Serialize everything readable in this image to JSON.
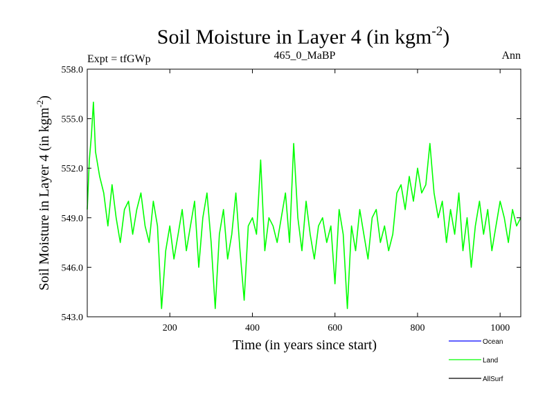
{
  "chart_data": {
    "type": "line",
    "title": "Soil Moisture in Layer 4 (in kgm",
    "title_sup": "-2",
    "title_close": ")",
    "subtitle_left": "Expt = tfGWp",
    "subtitle_center": "465_0_MaBP",
    "subtitle_right": "Ann",
    "xlabel": "Time (in years since start)",
    "ylabel": "Soil Moisture in Layer 4 (in kgm",
    "ylabel_sup": "-2",
    "ylabel_close": ")",
    "xlim": [
      0,
      1050
    ],
    "ylim": [
      543.0,
      558.0
    ],
    "x_ticks": [
      200,
      400,
      600,
      800,
      1000
    ],
    "x_tick_labels": [
      "200",
      "400",
      "600",
      "800",
      "1000"
    ],
    "y_ticks": [
      543.0,
      546.0,
      549.0,
      552.0,
      555.0,
      558.0
    ],
    "y_tick_labels": [
      "543.0",
      "546.0",
      "549.0",
      "552.0",
      "555.0",
      "558.0"
    ],
    "series": [
      {
        "name": "Land",
        "color": "#00ff00",
        "x": [
          0,
          5,
          10,
          15,
          20,
          30,
          40,
          50,
          60,
          70,
          80,
          90,
          100,
          110,
          120,
          130,
          140,
          150,
          160,
          170,
          180,
          190,
          200,
          210,
          220,
          230,
          240,
          250,
          260,
          270,
          280,
          290,
          300,
          310,
          320,
          330,
          340,
          350,
          360,
          370,
          380,
          390,
          400,
          410,
          420,
          430,
          440,
          450,
          460,
          470,
          480,
          490,
          500,
          510,
          520,
          530,
          540,
          550,
          560,
          570,
          580,
          590,
          600,
          610,
          620,
          630,
          640,
          650,
          660,
          670,
          680,
          690,
          700,
          710,
          720,
          730,
          740,
          750,
          760,
          770,
          780,
          790,
          800,
          810,
          820,
          830,
          840,
          850,
          860,
          870,
          880,
          890,
          900,
          910,
          920,
          930,
          940,
          950,
          960,
          970,
          980,
          990,
          1000,
          1010,
          1020,
          1030,
          1040,
          1050
        ],
        "values": [
          549.5,
          552.5,
          554.0,
          556.0,
          553.0,
          551.5,
          550.5,
          548.5,
          551.0,
          549.0,
          547.5,
          549.5,
          550.0,
          548.0,
          549.5,
          550.5,
          548.5,
          547.5,
          550.0,
          548.5,
          543.5,
          547.0,
          548.5,
          546.5,
          548.0,
          549.5,
          547.0,
          548.5,
          550.0,
          546.0,
          549.0,
          550.5,
          547.5,
          543.5,
          548.0,
          549.5,
          546.5,
          548.0,
          550.5,
          547.0,
          544.0,
          548.5,
          549.0,
          548.0,
          552.5,
          547.0,
          549.0,
          548.5,
          547.5,
          549.0,
          550.5,
          547.5,
          553.5,
          549.0,
          547.0,
          550.0,
          548.0,
          546.5,
          548.5,
          549.0,
          547.5,
          548.5,
          545.0,
          549.5,
          548.0,
          543.5,
          548.5,
          547.0,
          549.5,
          548.0,
          546.5,
          549.0,
          549.5,
          547.5,
          548.5,
          547.0,
          548.0,
          550.5,
          551.0,
          549.5,
          551.5,
          550.0,
          552.0,
          550.5,
          551.0,
          553.5,
          550.5,
          549.0,
          550.0,
          547.5,
          549.5,
          548.0,
          550.5,
          547.0,
          549.0,
          546.0,
          548.5,
          550.0,
          548.0,
          549.5,
          547.0,
          548.5,
          550.0,
          549.0,
          547.5,
          549.5,
          548.5,
          549.0
        ]
      }
    ],
    "legend": {
      "placement": "bottom-right",
      "entries": [
        {
          "label": "Ocean",
          "color": "#0000ff"
        },
        {
          "label": "Land",
          "color": "#00ff00"
        },
        {
          "label": "AllSurf",
          "color": "#000000"
        }
      ]
    }
  }
}
